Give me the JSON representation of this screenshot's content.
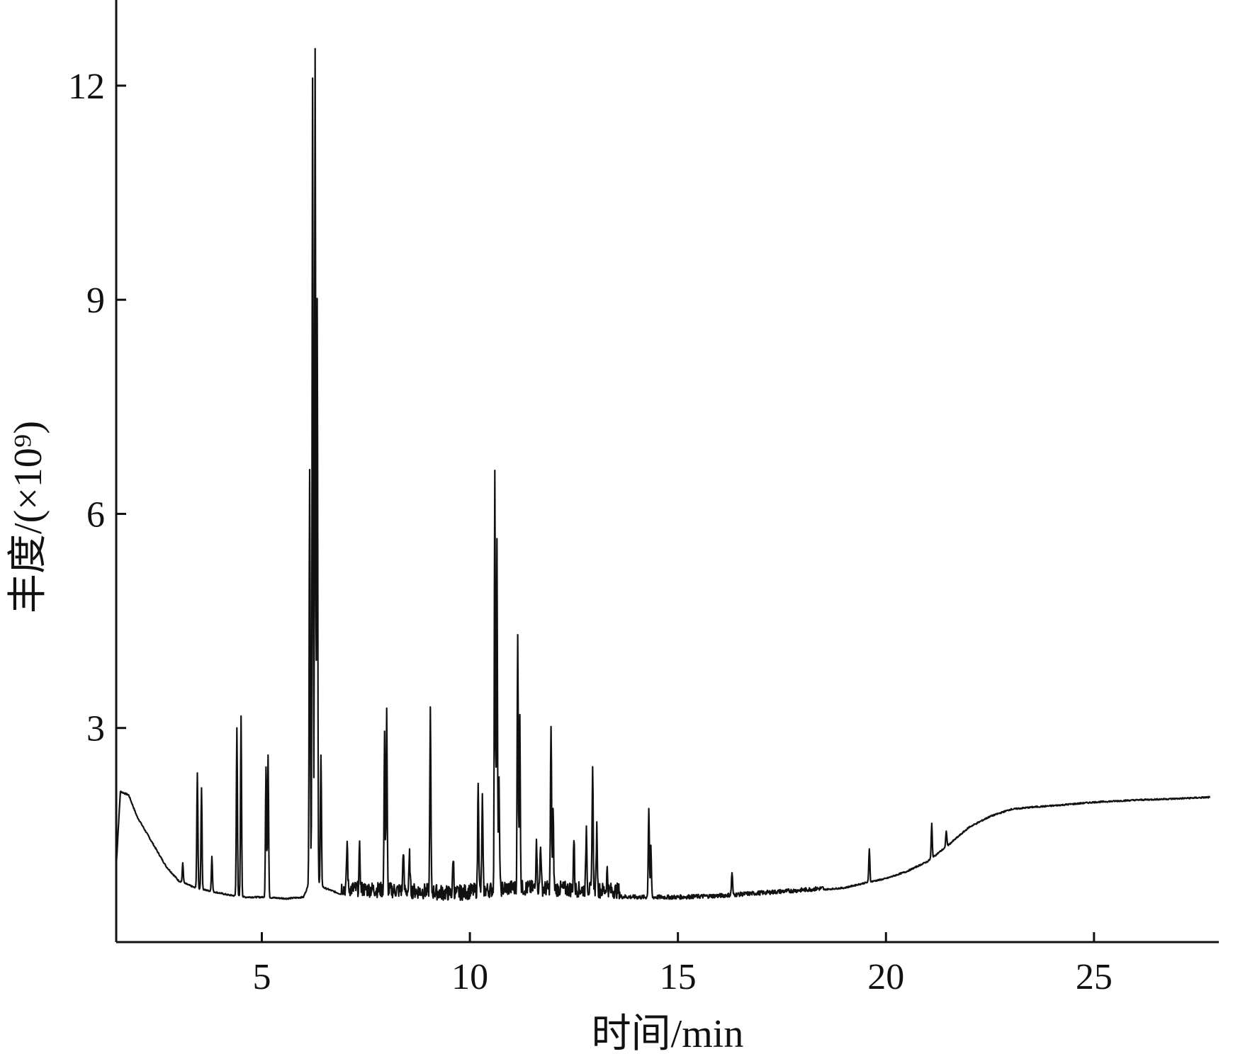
{
  "chart_data": {
    "type": "line",
    "title": "",
    "xlabel": "时间/min",
    "ylabel": "丰度/(×10⁹)",
    "xlim": [
      1.5,
      28
    ],
    "ylim": [
      0,
      13.2
    ],
    "x_ticks": [
      5,
      10,
      15,
      20,
      25
    ],
    "y_ticks": [
      3,
      6,
      9,
      12
    ],
    "x_tick_labels": [
      "5",
      "10",
      "15",
      "20",
      "25"
    ],
    "y_tick_labels": [
      "3",
      "6",
      "9",
      "12"
    ],
    "grid": false,
    "legend": "none",
    "baseline": [
      [
        1.5,
        1.05
      ],
      [
        1.6,
        2.1
      ],
      [
        1.8,
        2.05
      ],
      [
        2.0,
        1.75
      ],
      [
        2.3,
        1.45
      ],
      [
        2.7,
        1.05
      ],
      [
        3.0,
        0.85
      ],
      [
        3.4,
        0.75
      ],
      [
        3.8,
        0.7
      ],
      [
        4.2,
        0.65
      ],
      [
        4.6,
        0.62
      ],
      [
        5.0,
        0.62
      ],
      [
        5.6,
        0.6
      ],
      [
        6.0,
        0.62
      ],
      [
        6.2,
        0.9
      ],
      [
        6.5,
        0.75
      ],
      [
        7.0,
        0.64
      ],
      [
        8.0,
        0.62
      ],
      [
        9.0,
        0.6
      ],
      [
        9.6,
        0.57
      ],
      [
        10.0,
        0.6
      ],
      [
        11.0,
        0.65
      ],
      [
        12.0,
        0.64
      ],
      [
        13.0,
        0.62
      ],
      [
        14.0,
        0.6
      ],
      [
        15.0,
        0.6
      ],
      [
        16.0,
        0.62
      ],
      [
        17.0,
        0.66
      ],
      [
        18.0,
        0.7
      ],
      [
        19.0,
        0.75
      ],
      [
        19.5,
        0.82
      ],
      [
        20.0,
        0.88
      ],
      [
        20.5,
        0.98
      ],
      [
        21.0,
        1.12
      ],
      [
        21.5,
        1.35
      ],
      [
        22.0,
        1.6
      ],
      [
        22.5,
        1.75
      ],
      [
        23.0,
        1.85
      ],
      [
        23.5,
        1.88
      ],
      [
        24.0,
        1.9
      ],
      [
        25.0,
        1.95
      ],
      [
        26.0,
        1.98
      ],
      [
        27.0,
        2.0
      ],
      [
        27.8,
        2.02
      ]
    ],
    "peaks": [
      {
        "x": 3.1,
        "y": 1.1
      },
      {
        "x": 3.45,
        "y": 2.35
      },
      {
        "x": 3.55,
        "y": 2.15
      },
      {
        "x": 3.8,
        "y": 1.2
      },
      {
        "x": 4.4,
        "y": 3.0
      },
      {
        "x": 4.5,
        "y": 3.15
      },
      {
        "x": 5.1,
        "y": 2.45
      },
      {
        "x": 5.15,
        "y": 2.6
      },
      {
        "x": 6.15,
        "y": 6.6
      },
      {
        "x": 6.22,
        "y": 12.1
      },
      {
        "x": 6.28,
        "y": 12.5
      },
      {
        "x": 6.33,
        "y": 9.0
      },
      {
        "x": 6.42,
        "y": 2.6
      },
      {
        "x": 7.05,
        "y": 1.3
      },
      {
        "x": 7.35,
        "y": 1.2
      },
      {
        "x": 7.95,
        "y": 2.75
      },
      {
        "x": 8.0,
        "y": 3.1
      },
      {
        "x": 8.4,
        "y": 1.2
      },
      {
        "x": 8.55,
        "y": 1.1
      },
      {
        "x": 9.05,
        "y": 3.1
      },
      {
        "x": 9.6,
        "y": 1.1
      },
      {
        "x": 10.2,
        "y": 2.2
      },
      {
        "x": 10.3,
        "y": 1.9
      },
      {
        "x": 10.6,
        "y": 6.4
      },
      {
        "x": 10.65,
        "y": 5.5
      },
      {
        "x": 10.7,
        "y": 2.1
      },
      {
        "x": 11.15,
        "y": 4.15
      },
      {
        "x": 11.2,
        "y": 3.0
      },
      {
        "x": 11.6,
        "y": 1.4
      },
      {
        "x": 11.7,
        "y": 1.3
      },
      {
        "x": 11.95,
        "y": 2.9
      },
      {
        "x": 12.0,
        "y": 1.7
      },
      {
        "x": 12.5,
        "y": 1.35
      },
      {
        "x": 12.8,
        "y": 1.5
      },
      {
        "x": 12.95,
        "y": 2.35
      },
      {
        "x": 13.05,
        "y": 1.5
      },
      {
        "x": 13.3,
        "y": 0.9
      },
      {
        "x": 14.3,
        "y": 1.85
      },
      {
        "x": 14.35,
        "y": 1.3
      },
      {
        "x": 16.3,
        "y": 0.95
      },
      {
        "x": 19.6,
        "y": 1.3
      },
      {
        "x": 21.1,
        "y": 1.65
      },
      {
        "x": 21.45,
        "y": 1.55
      }
    ]
  }
}
